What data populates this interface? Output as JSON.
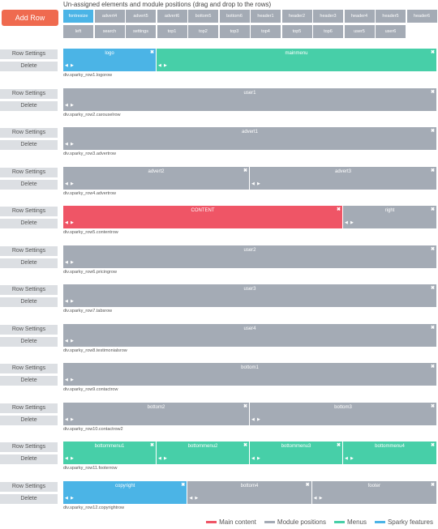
{
  "header": {
    "add_row_label": "Add Row",
    "title": "Un-assigned elements and module positions (drag and drop to the rows)"
  },
  "pool": {
    "row1": [
      {
        "label": "fontresize",
        "kind": "feature"
      },
      {
        "label": "advert4",
        "kind": "position"
      },
      {
        "label": "advert5",
        "kind": "position"
      },
      {
        "label": "advert6",
        "kind": "position"
      },
      {
        "label": "bottom5",
        "kind": "position"
      },
      {
        "label": "bottom6",
        "kind": "position"
      },
      {
        "label": "header1",
        "kind": "position"
      },
      {
        "label": "header2",
        "kind": "position"
      },
      {
        "label": "header3",
        "kind": "position"
      },
      {
        "label": "header4",
        "kind": "position"
      },
      {
        "label": "header5",
        "kind": "position"
      },
      {
        "label": "header6",
        "kind": "position"
      }
    ],
    "row2": [
      {
        "label": "left",
        "kind": "position"
      },
      {
        "label": "search",
        "kind": "position"
      },
      {
        "label": "settings",
        "kind": "position"
      },
      {
        "label": "top1",
        "kind": "position"
      },
      {
        "label": "top2",
        "kind": "position"
      },
      {
        "label": "top3",
        "kind": "position"
      },
      {
        "label": "top4",
        "kind": "position"
      },
      {
        "label": "top5",
        "kind": "position"
      },
      {
        "label": "top6",
        "kind": "position"
      },
      {
        "label": "user5",
        "kind": "position"
      },
      {
        "label": "user6",
        "kind": "position"
      }
    ]
  },
  "row_buttons": {
    "settings_label": "Row Settings",
    "delete_label": "Delete",
    "close_symbol": "✖",
    "arrow_left": "◀",
    "arrow_right": "▶"
  },
  "rows": [
    {
      "class": "div.sparky_row1.logorow",
      "modules": [
        {
          "label": "logo",
          "kind": "feature",
          "span": 25
        },
        {
          "label": "mainmenu",
          "kind": "menu",
          "span": 75
        }
      ]
    },
    {
      "class": "div.sparky_row2.carouselrow",
      "modules": [
        {
          "label": "user1",
          "kind": "position",
          "span": 100
        }
      ]
    },
    {
      "class": "div.sparky_row3.advertrow",
      "modules": [
        {
          "label": "advert1",
          "kind": "position",
          "span": 100
        }
      ]
    },
    {
      "class": "div.sparky_row4.advertrow",
      "modules": [
        {
          "label": "advert2",
          "kind": "position",
          "span": 50
        },
        {
          "label": "advert3",
          "kind": "position",
          "span": 50
        }
      ]
    },
    {
      "class": "div.sparky_row5.contentrow",
      "modules": [
        {
          "label": "CONTENT",
          "kind": "main",
          "span": 75
        },
        {
          "label": "right",
          "kind": "position",
          "span": 25
        }
      ]
    },
    {
      "class": "div.sparky_row6.pricingrow",
      "modules": [
        {
          "label": "user2",
          "kind": "position",
          "span": 100
        }
      ]
    },
    {
      "class": "div.sparky_row7.tabsrow",
      "modules": [
        {
          "label": "user3",
          "kind": "position",
          "span": 100
        }
      ]
    },
    {
      "class": "div.sparky_row8.testimonialsrow",
      "modules": [
        {
          "label": "user4",
          "kind": "position",
          "span": 100
        }
      ]
    },
    {
      "class": "div.sparky_row9.contactrow",
      "modules": [
        {
          "label": "bottom1",
          "kind": "position",
          "span": 100
        }
      ]
    },
    {
      "class": "div.sparky_row10.contactrow2",
      "modules": [
        {
          "label": "bottom2",
          "kind": "position",
          "span": 50
        },
        {
          "label": "bottom3",
          "kind": "position",
          "span": 50
        }
      ]
    },
    {
      "class": "div.sparky_row11.footerrow",
      "modules": [
        {
          "label": "bottommenu1",
          "kind": "menu",
          "span": 25
        },
        {
          "label": "bottommenu2",
          "kind": "menu",
          "span": 25
        },
        {
          "label": "bottommenu3",
          "kind": "menu",
          "span": 25
        },
        {
          "label": "bottommenu4",
          "kind": "menu",
          "span": 25
        }
      ]
    },
    {
      "class": "div.sparky_row12.copyrightrow",
      "modules": [
        {
          "label": "copyright",
          "kind": "feature",
          "span": 33.333
        },
        {
          "label": "bottom4",
          "kind": "position",
          "span": 33.333
        },
        {
          "label": "footer",
          "kind": "position",
          "span": 33.334
        }
      ]
    }
  ],
  "legend": [
    {
      "label": "Main content",
      "color": "#ef5566"
    },
    {
      "label": "Module positions",
      "color": "#a4abb5"
    },
    {
      "label": "Menus",
      "color": "#47cfa8"
    },
    {
      "label": "Sparky features",
      "color": "#4bb4e6"
    }
  ]
}
